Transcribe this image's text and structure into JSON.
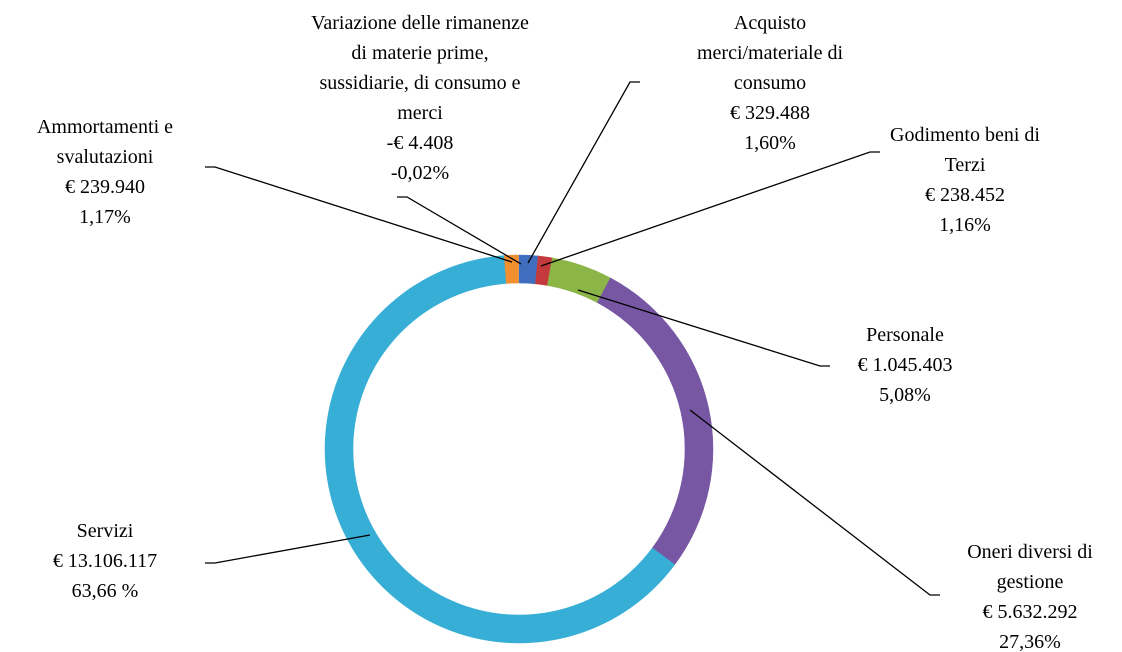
{
  "chart_data": {
    "type": "donut",
    "categories": [
      "Acquisto merci/materiale di consumo",
      "Variazione delle rimanenze di materie prime, sussidiarie, di consumo e merci",
      "Godimento beni di Terzi",
      "Personale",
      "Oneri diversi di gestione",
      "Servizi",
      "Ammortamenti e svalutazioni"
    ],
    "values": [
      1.6,
      -0.02,
      1.16,
      5.08,
      27.36,
      63.66,
      1.17
    ],
    "value_labels": [
      "1,60%",
      "-0,02%",
      "1,16%",
      "5,08%",
      "27,36%",
      "63,66 %",
      "1,17%"
    ],
    "amount_labels": [
      "€ 329.488",
      "-€ 4.408",
      "€ 238.452",
      "€ 1.045.403",
      "€ 5.632.292",
      "€ 13.106.117",
      "€ 239.940"
    ],
    "colors": [
      "#3f6ebf",
      "#8064a2",
      "#c4393b",
      "#8cb548",
      "#7757a3",
      "#37aed5",
      "#f18e2e"
    ]
  }
}
